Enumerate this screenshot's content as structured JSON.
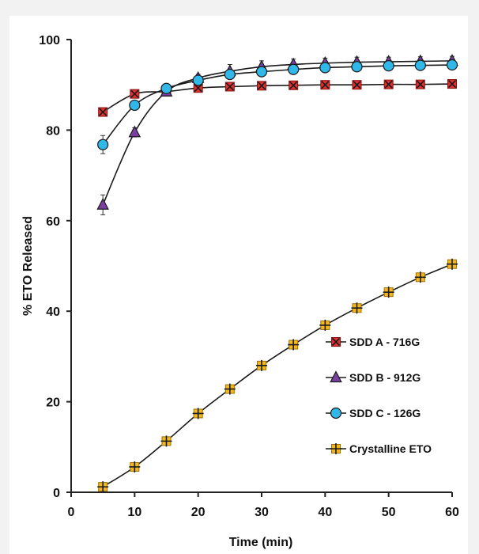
{
  "chart_data": {
    "type": "line",
    "title": "",
    "xlabel": "Time (min)",
    "ylabel": "% ETO Released",
    "xlim": [
      0,
      60
    ],
    "ylim": [
      0,
      100
    ],
    "xticks": [
      0,
      10,
      20,
      30,
      40,
      50,
      60
    ],
    "yticks": [
      0,
      20,
      40,
      60,
      80,
      100
    ],
    "grid": false,
    "legend_position": "bottom-right",
    "series": [
      {
        "name": "SDD A - 716G",
        "marker": "square-x",
        "color": "#e03030",
        "x": [
          5,
          10,
          15,
          20,
          25,
          30,
          35,
          40,
          45,
          50,
          55,
          60
        ],
        "y": [
          84,
          88,
          88.5,
          89.3,
          89.6,
          89.8,
          89.9,
          90.0,
          90.0,
          90.1,
          90.1,
          90.2
        ],
        "error": [
          0,
          0,
          0,
          0,
          0,
          0,
          0,
          0,
          0,
          0,
          0,
          0
        ]
      },
      {
        "name": "SDD B - 912G",
        "marker": "triangle",
        "color": "#7a3fa0",
        "x": [
          5,
          10,
          15,
          20,
          25,
          30,
          35,
          40,
          45,
          50,
          55,
          60
        ],
        "y": [
          63.5,
          79.5,
          88.5,
          91.5,
          93.0,
          94.0,
          94.5,
          94.8,
          95.0,
          95.1,
          95.2,
          95.3
        ],
        "error": [
          2.2,
          1.0,
          0.5,
          0.8,
          1.5,
          1.3,
          1.2,
          1.1,
          1.1,
          1.0,
          1.0,
          1.0
        ]
      },
      {
        "name": "SDD C - 126G",
        "marker": "circle",
        "color": "#2fb8e8",
        "x": [
          5,
          10,
          15,
          20,
          25,
          30,
          35,
          40,
          45,
          50,
          55,
          60
        ],
        "y": [
          76.8,
          85.5,
          89.2,
          91.0,
          92.3,
          92.9,
          93.4,
          93.8,
          94.0,
          94.2,
          94.3,
          94.4
        ],
        "error": [
          2.0,
          0.8,
          0.6,
          0.6,
          0.8,
          0.8,
          0.7,
          0.7,
          0.7,
          0.7,
          0.7,
          0.7
        ]
      },
      {
        "name": "Crystalline ETO",
        "marker": "square-plus",
        "color": "#f2b81e",
        "x": [
          5,
          10,
          15,
          20,
          25,
          30,
          35,
          40,
          45,
          50,
          55,
          60
        ],
        "y": [
          1.2,
          5.6,
          11.3,
          17.4,
          22.8,
          28.0,
          32.6,
          36.9,
          40.7,
          44.2,
          47.5,
          50.4
        ],
        "error": [
          0,
          0,
          0,
          0,
          0,
          0,
          0,
          0,
          0,
          0,
          0,
          0
        ]
      }
    ]
  }
}
